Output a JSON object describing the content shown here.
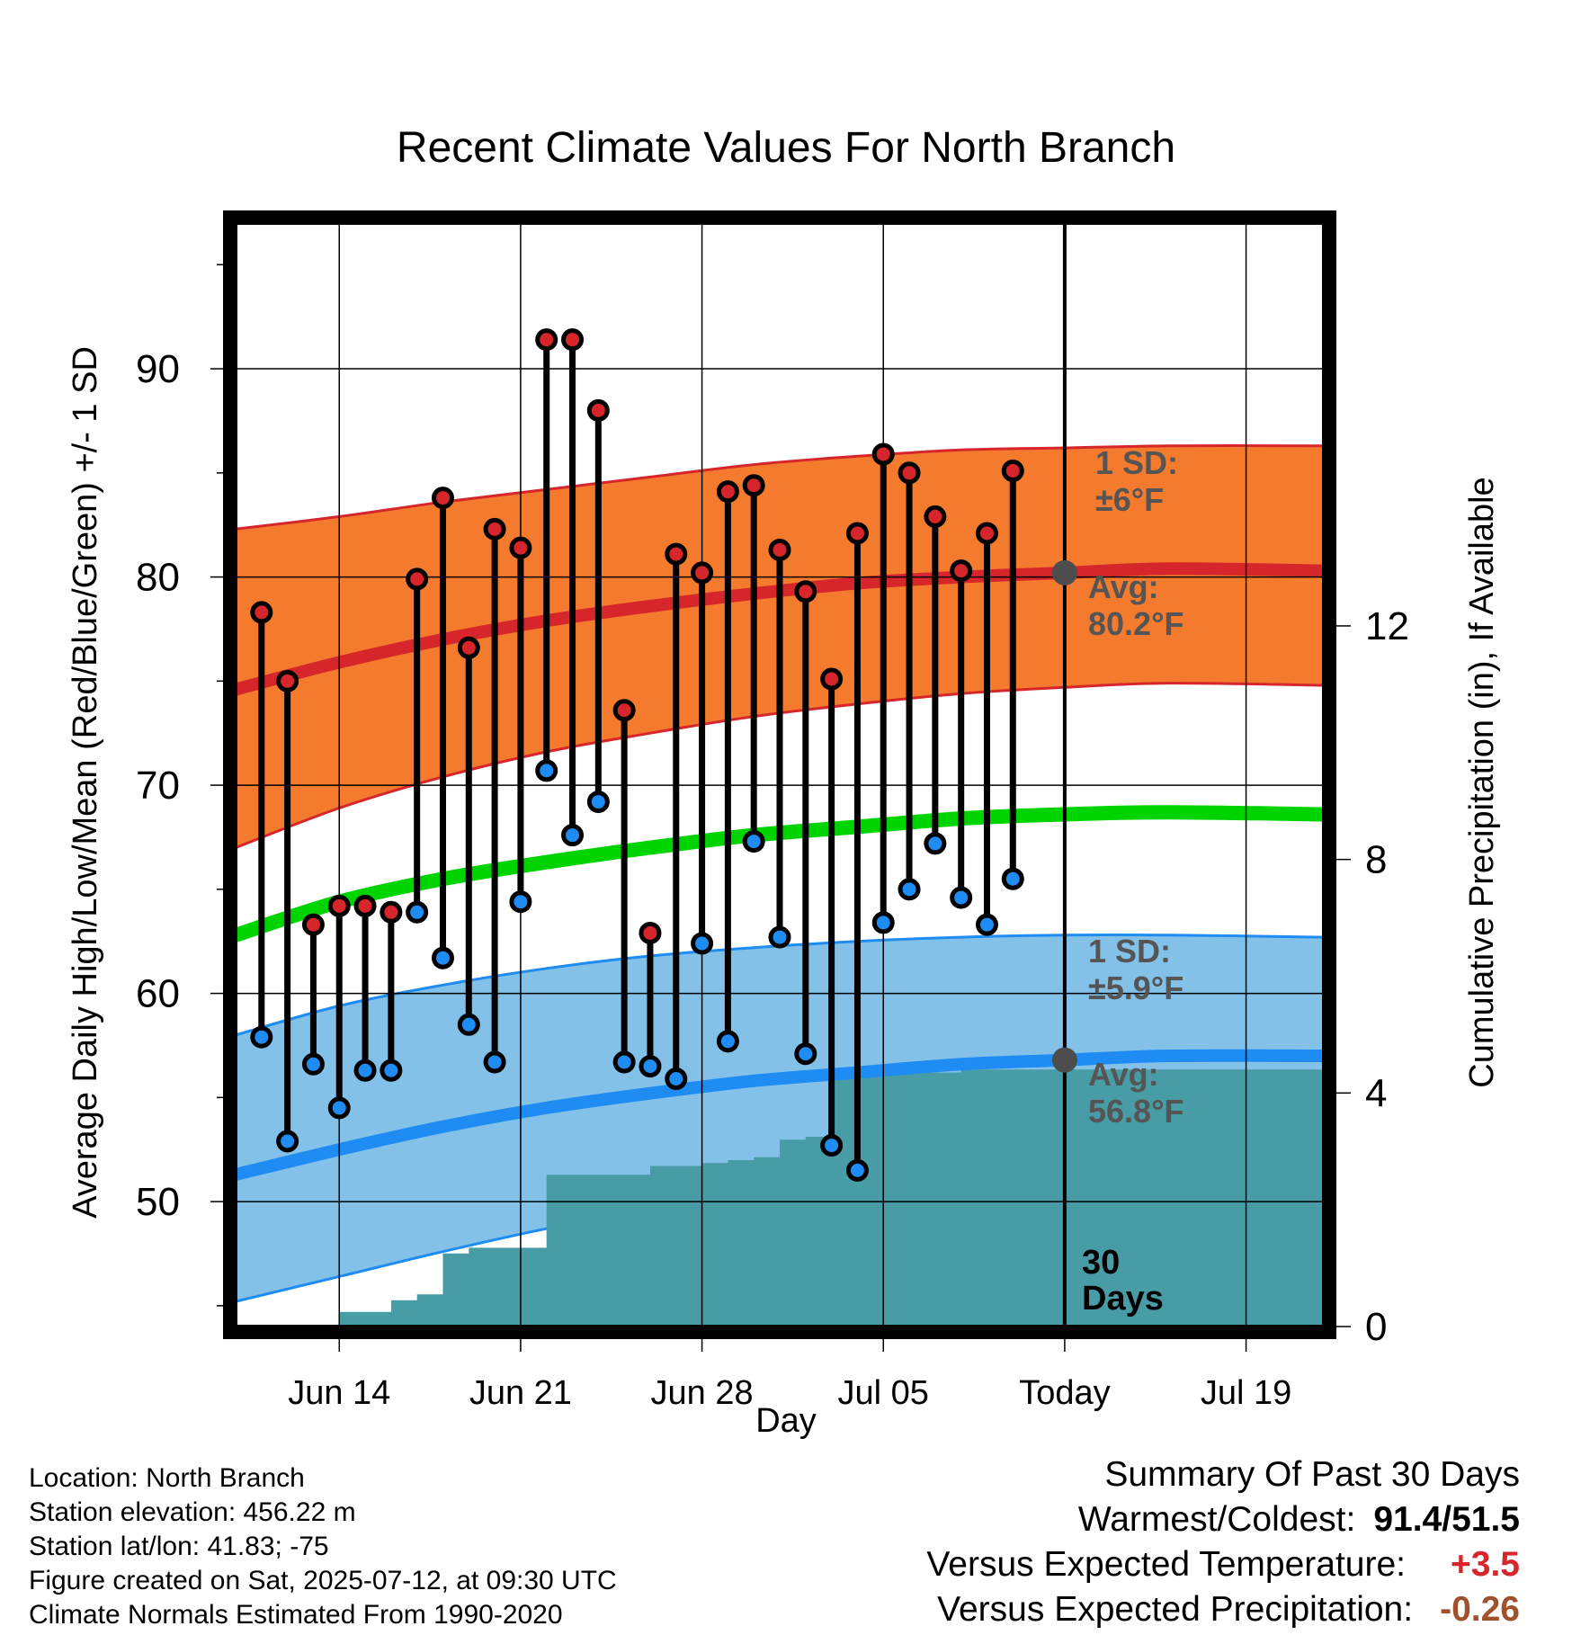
{
  "chart_data": {
    "type": "line",
    "title": "Recent Climate Values For North Branch",
    "xlabel": "Day",
    "ylabel": "Average Daily High/Low/Mean (Red/Blue/Green) +/- 1 SD",
    "y2label": "Cumulative Precipitation (in), If Available",
    "x_ticks": [
      "Jun 14",
      "Jun 21",
      "Jun 28",
      "Jul 05",
      "Today",
      "Jul 19"
    ],
    "x_range": [
      "2025-06-10",
      "2025-07-22"
    ],
    "ylim": [
      44,
      97
    ],
    "y_ticks": [
      50,
      60,
      70,
      80,
      90
    ],
    "y2lim": [
      0,
      18.9
    ],
    "y2_ticks": [
      0,
      4,
      8,
      12
    ],
    "today": "2025-07-12",
    "observed": {
      "dates": [
        "2025-06-11",
        "2025-06-12",
        "2025-06-13",
        "2025-06-14",
        "2025-06-15",
        "2025-06-16",
        "2025-06-17",
        "2025-06-18",
        "2025-06-19",
        "2025-06-20",
        "2025-06-21",
        "2025-06-22",
        "2025-06-23",
        "2025-06-24",
        "2025-06-25",
        "2025-06-26",
        "2025-06-27",
        "2025-06-28",
        "2025-06-29",
        "2025-06-30",
        "2025-07-01",
        "2025-07-02",
        "2025-07-03",
        "2025-07-04",
        "2025-07-05",
        "2025-07-06",
        "2025-07-07",
        "2025-07-08",
        "2025-07-09",
        "2025-07-10",
        "2025-07-11"
      ],
      "high": [
        78.3,
        75.0,
        63.3,
        64.2,
        64.2,
        63.9,
        79.9,
        83.8,
        76.6,
        82.3,
        81.4,
        91.4,
        91.4,
        88.0,
        73.6,
        62.9,
        81.1,
        80.2,
        84.1,
        84.4,
        81.3,
        79.3,
        75.1,
        82.1,
        85.9,
        85.0,
        82.9,
        80.3,
        82.1,
        85.1,
        null
      ],
      "low": [
        57.9,
        52.9,
        56.6,
        54.5,
        56.3,
        56.3,
        63.9,
        61.7,
        58.5,
        56.7,
        64.4,
        70.7,
        67.6,
        69.2,
        56.7,
        56.5,
        55.9,
        62.4,
        57.7,
        67.3,
        62.7,
        57.1,
        52.7,
        51.5,
        63.4,
        65.0,
        67.2,
        64.6,
        63.3,
        65.5,
        null
      ]
    },
    "normals": {
      "dates": [
        "2025-06-10",
        "2025-06-14",
        "2025-06-18",
        "2025-06-22",
        "2025-06-26",
        "2025-06-30",
        "2025-07-04",
        "2025-07-08",
        "2025-07-12",
        "2025-07-16",
        "2025-07-22"
      ],
      "high_avg": [
        74.6,
        75.9,
        77.0,
        77.9,
        78.6,
        79.2,
        79.7,
        80.0,
        80.2,
        80.4,
        80.3
      ],
      "high_sd_upper": [
        82.3,
        82.9,
        83.6,
        84.2,
        84.8,
        85.4,
        85.8,
        86.1,
        86.2,
        86.3,
        86.3
      ],
      "high_sd_lower": [
        67.0,
        68.9,
        70.4,
        71.6,
        72.5,
        73.3,
        73.9,
        74.4,
        74.7,
        74.9,
        74.8
      ],
      "mean_avg": [
        62.8,
        64.4,
        65.5,
        66.3,
        67.0,
        67.6,
        68.0,
        68.4,
        68.6,
        68.7,
        68.6
      ],
      "low_avg": [
        51.3,
        52.5,
        53.6,
        54.5,
        55.2,
        55.8,
        56.2,
        56.6,
        56.8,
        57.0,
        57.0
      ],
      "low_sd_upper": [
        58.0,
        59.4,
        60.4,
        61.2,
        61.8,
        62.2,
        62.5,
        62.7,
        62.8,
        62.8,
        62.7
      ],
      "low_sd_lower": [
        45.2,
        46.4,
        47.6,
        48.7,
        49.6,
        50.4,
        51.0,
        51.4,
        51.7,
        51.9,
        52.0
      ]
    },
    "precip": {
      "dates": [
        "2025-06-13",
        "2025-06-14",
        "2025-06-15",
        "2025-06-16",
        "2025-06-17",
        "2025-06-18",
        "2025-06-19",
        "2025-06-20",
        "2025-06-21",
        "2025-06-22",
        "2025-06-23",
        "2025-06-24",
        "2025-06-25",
        "2025-06-26",
        "2025-06-27",
        "2025-06-28",
        "2025-06-29",
        "2025-06-30",
        "2025-07-01",
        "2025-07-02",
        "2025-07-03",
        "2025-07-04",
        "2025-07-05",
        "2025-07-06",
        "2025-07-07",
        "2025-07-08",
        "2025-07-09",
        "2025-07-10",
        "2025-07-11",
        "2025-07-22"
      ],
      "cumulative": [
        0.0,
        0.25,
        0.25,
        0.45,
        0.55,
        1.25,
        1.35,
        1.35,
        1.35,
        2.6,
        2.6,
        2.6,
        2.6,
        2.75,
        2.75,
        2.8,
        2.85,
        2.9,
        3.2,
        3.25,
        4.35,
        4.35,
        4.35,
        4.35,
        4.35,
        4.4,
        4.4,
        4.4,
        4.4,
        4.4
      ]
    },
    "annotations": {
      "high_sd_label": "1 SD:",
      "high_sd_value": "±6°F",
      "high_avg_label": "Avg:",
      "high_avg_value": "80.2°F",
      "low_sd_label": "1 SD:",
      "low_sd_value": "±5.9°F",
      "low_avg_label": "Avg:",
      "low_avg_value": "56.8°F",
      "days_number": "30",
      "days_word": "Days"
    },
    "colors": {
      "high_band": "#f47b2e",
      "high_line": "#d6262b",
      "mean_line": "#00d400",
      "low_band": "#83c1e8",
      "low_line": "#1e8cf2",
      "precip": "#489ca5",
      "high_marker": "#d6262b",
      "low_marker": "#1e8cf2",
      "today_marker": "#4d4d4d",
      "annotation_text": "#555555"
    }
  },
  "footer": {
    "location": "Location: North Branch",
    "elevation": "Station elevation: 456.22 m",
    "latlon": "Station lat/lon: 41.83; -75",
    "created": "Figure created on Sat, 2025-07-12, at 09:30 UTC",
    "normals": "Climate Normals Estimated From 1990-2020"
  },
  "summary": {
    "title": "Summary Of Past 30 Days",
    "warm_cold_label": "Warmest/Coldest:",
    "warm_cold_value": "91.4/51.5",
    "temp_label": "Versus Expected Temperature:",
    "temp_value": "+3.5",
    "temp_color": "#d6262b",
    "precip_label": "Versus Expected Precipitation:",
    "precip_value": "-0.26",
    "precip_color": "#a0522d"
  }
}
